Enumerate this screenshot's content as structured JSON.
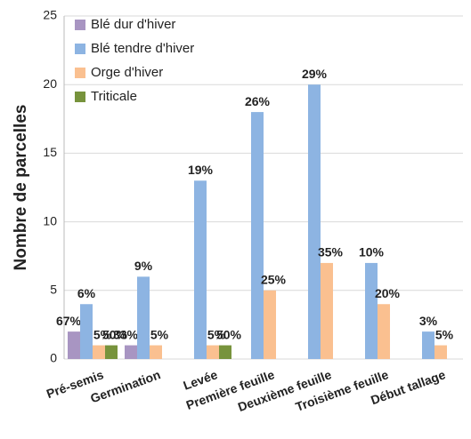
{
  "chart_data": {
    "type": "bar",
    "y_label": "Nombre de parcelles",
    "categories": [
      "Pré-semis",
      "Germination",
      "Levée",
      "Première feuille",
      "Deuxième feuille",
      "Troisième feuille",
      "Début tallage"
    ],
    "series": [
      {
        "name": "Blé dur d'hiver",
        "color": "#a895c2",
        "label_color": "#8064a2",
        "values": [
          2,
          1,
          0,
          0,
          0,
          0,
          0
        ],
        "share_labels": [
          "67%",
          "33%",
          null,
          null,
          null,
          null,
          null
        ]
      },
      {
        "name": "Blé tendre d'hiver",
        "color": "#8db4e2",
        "label_color": "#558ed5",
        "values": [
          4,
          6,
          13,
          18,
          20,
          7,
          2
        ],
        "share_labels": [
          "6%",
          "9%",
          "19%",
          "26%",
          "29%",
          "10%",
          "3%"
        ]
      },
      {
        "name": "Orge d'hiver",
        "color": "#fac090",
        "label_color": "#f79646",
        "values": [
          1,
          1,
          1,
          5,
          7,
          4,
          1
        ],
        "share_labels": [
          "5%",
          "5%",
          "5%",
          "25%",
          "35%",
          "20%",
          "5%"
        ]
      },
      {
        "name": "Triticale",
        "color": "#77933c",
        "label_color": "#77933c",
        "values": [
          1,
          0,
          1,
          0,
          0,
          0,
          0
        ],
        "share_labels": [
          "50%",
          null,
          "50%",
          null,
          null,
          null,
          null
        ]
      }
    ],
    "ylim": [
      0,
      25
    ],
    "yticks": [
      0,
      5,
      10,
      15,
      20,
      25
    ],
    "grid": true,
    "legend": "top-left"
  }
}
